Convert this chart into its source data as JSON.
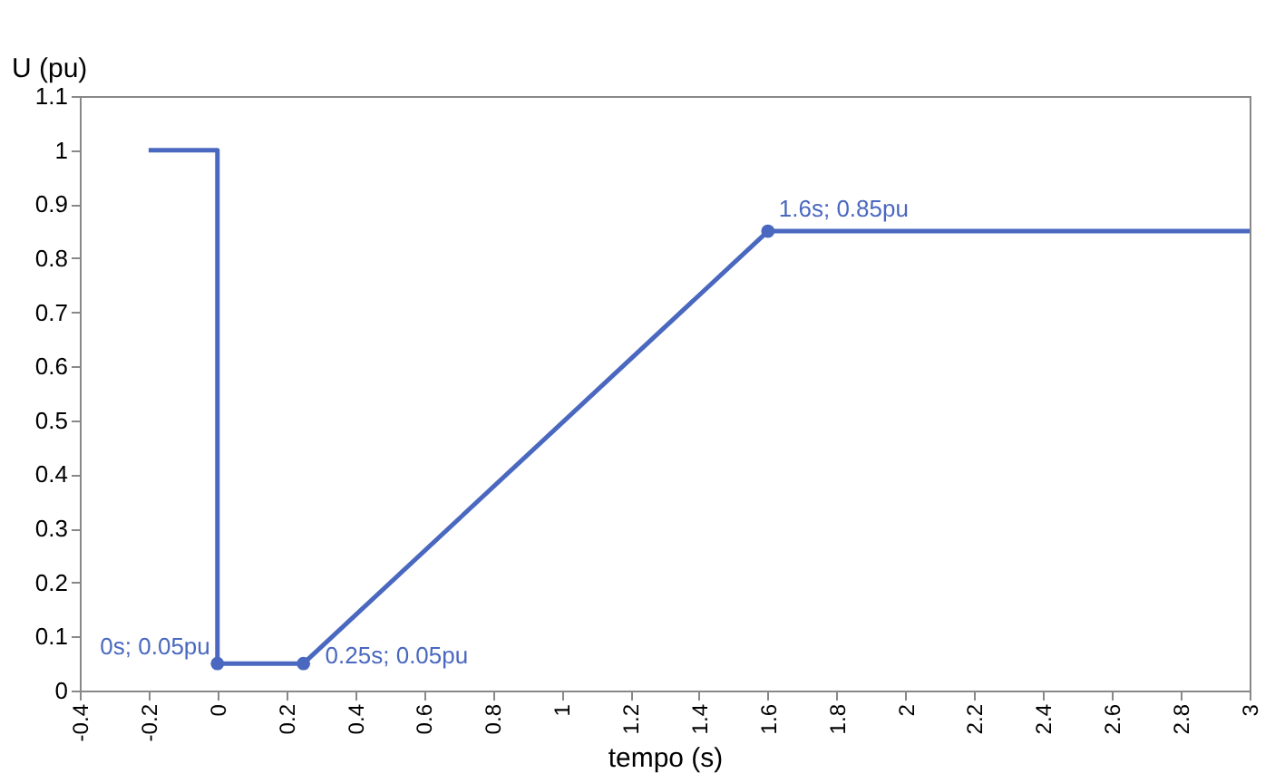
{
  "chart_data": {
    "type": "line",
    "xlabel": "tempo (s)",
    "ylabel": "U  (pu)",
    "xlim": [
      -0.4,
      3
    ],
    "ylim": [
      0,
      1.1
    ],
    "xticks": [
      -0.4,
      -0.2,
      0,
      0.2,
      0.4,
      0.6,
      0.8,
      1,
      1.2,
      1.4,
      1.6,
      1.8,
      2,
      2.2,
      2.4,
      2.6,
      2.8,
      3
    ],
    "yticks": [
      0,
      0.1,
      0.2,
      0.3,
      0.4,
      0.5,
      0.6,
      0.7,
      0.8,
      0.9,
      1,
      1.1
    ],
    "grid": false,
    "line_style": "solid",
    "series": [
      {
        "color": "#4a68bf",
        "marker": "none",
        "x": [
          -0.2,
          0,
          0,
          0.25,
          1.6,
          3
        ],
        "values": [
          1,
          1,
          0.05,
          0.05,
          0.85,
          0.85
        ]
      },
      {
        "type": "scatter",
        "color": "#4a68bf",
        "marker": "circle",
        "x": [
          0,
          0.25,
          1.6
        ],
        "values": [
          0.05,
          0.05,
          0.85
        ]
      }
    ],
    "annotations": [
      {
        "text": "0s; 0.05pu",
        "x": 0,
        "y": 0.05
      },
      {
        "text": "0.25s; 0.05pu",
        "x": 0.25,
        "y": 0.05
      },
      {
        "text": "1.6s; 0.85pu",
        "x": 1.6,
        "y": 0.85
      }
    ]
  }
}
